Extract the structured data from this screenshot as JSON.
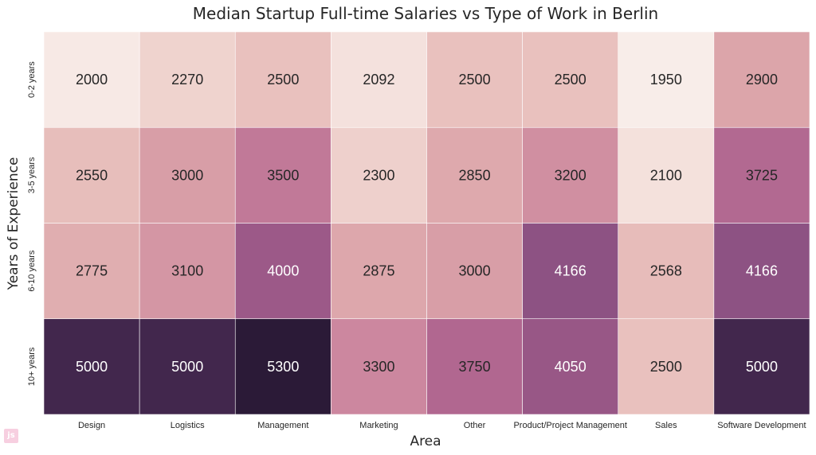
{
  "chart_data": {
    "type": "heatmap",
    "title": "Median Startup Full-time Salaries vs Type of Work in Berlin",
    "xlabel": "Area",
    "ylabel": "Years of Experience",
    "x_categories": [
      "Design",
      "Logistics",
      "Management",
      "Marketing",
      "Other",
      "Product/Project Management",
      "Sales",
      "Software Development"
    ],
    "y_categories": [
      "0-2 years",
      "3-5 years",
      "6-10 years",
      "10+ years"
    ],
    "values": [
      [
        2000,
        2270,
        2500,
        2092,
        2500,
        2500,
        1950,
        2900
      ],
      [
        2550,
        3000,
        3500,
        2300,
        2850,
        3200,
        2100,
        3725
      ],
      [
        2775,
        3100,
        4000,
        2875,
        3000,
        4166,
        2568,
        4166
      ],
      [
        5000,
        5000,
        5300,
        3300,
        3750,
        4050,
        2500,
        5000
      ]
    ],
    "colormap": [
      "#f8ede9",
      "#ebc6c1",
      "#dca5aa",
      "#c9819c",
      "#a95f8c",
      "#7c4a7d",
      "#4f2f5a",
      "#2b1a37"
    ],
    "color_range": [
      1950,
      5300
    ],
    "colorbar": false
  }
}
